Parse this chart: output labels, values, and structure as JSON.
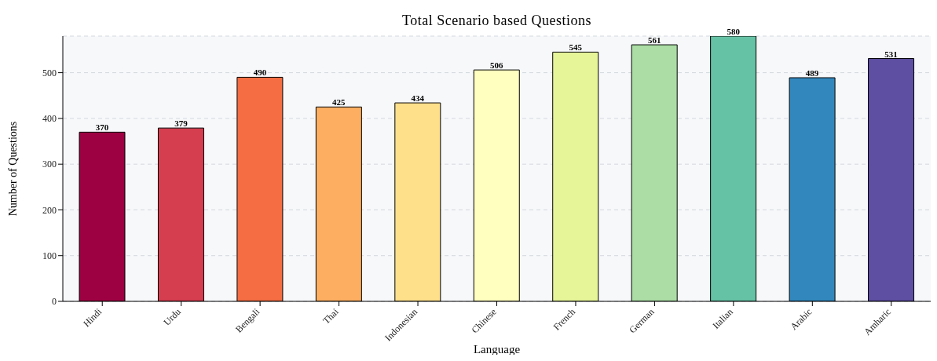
{
  "chart_data": {
    "type": "bar",
    "title": "Total Scenario based Questions",
    "xlabel": "Language",
    "ylabel": "Number of Questions",
    "categories": [
      "Hindi",
      "Urdu",
      "Bengali",
      "Thai",
      "Indonesian",
      "Chinese",
      "French",
      "German",
      "Italian",
      "Arabic",
      "Amharic"
    ],
    "values": [
      370,
      379,
      490,
      425,
      434,
      506,
      545,
      561,
      580,
      489,
      531
    ],
    "colors": [
      "#9e0142",
      "#d53e4f",
      "#f46d43",
      "#fdae61",
      "#fee08b",
      "#ffffbf",
      "#e6f598",
      "#abdda4",
      "#66c2a5",
      "#3288bd",
      "#5e4fa2"
    ],
    "ylim": [
      0,
      580
    ],
    "yticks": [
      0,
      100,
      200,
      300,
      400,
      500
    ],
    "grid": "y",
    "data_labels": true
  }
}
